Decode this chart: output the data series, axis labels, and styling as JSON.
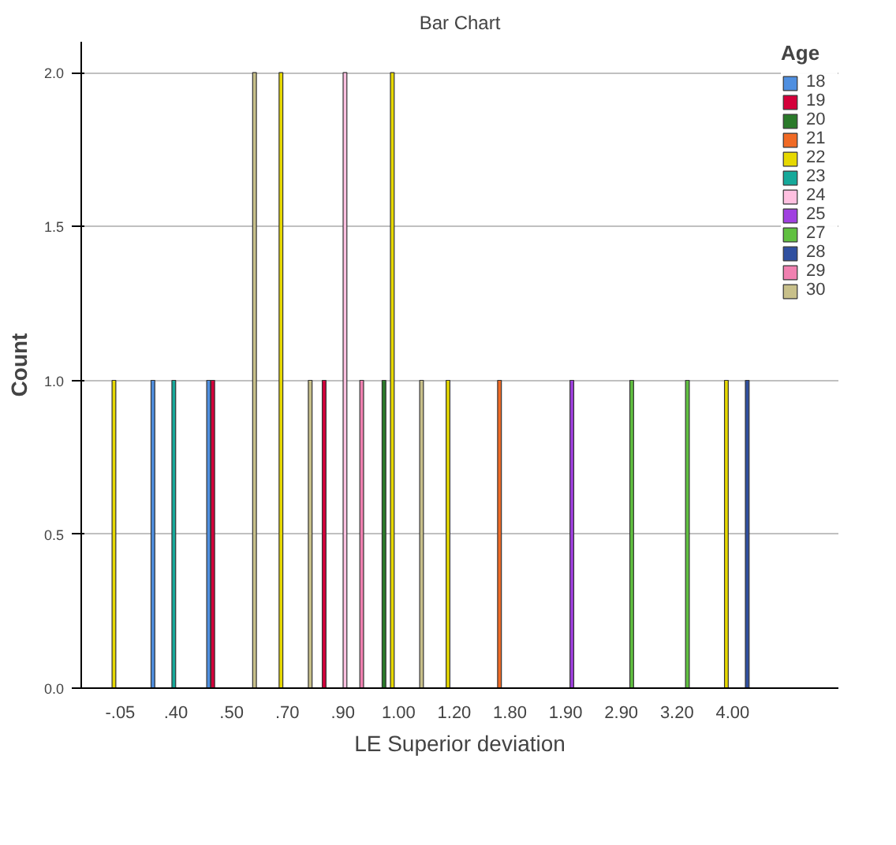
{
  "chart_data": {
    "type": "bar",
    "title": "Bar Chart",
    "xlabel": "LE Superior deviation",
    "ylabel": "Count",
    "legend_title": "Age",
    "categories": [
      "-.05",
      ".40",
      ".50",
      ".70",
      ".90",
      "1.00",
      "1.20",
      "1.80",
      "1.90",
      "2.90",
      "3.20",
      "4.00"
    ],
    "series": [
      {
        "name": "18",
        "color": "#4f8fe0",
        "values": [
          null,
          1,
          1,
          null,
          null,
          null,
          null,
          null,
          null,
          null,
          null,
          null
        ]
      },
      {
        "name": "19",
        "color": "#d4003a",
        "values": [
          null,
          null,
          1,
          null,
          1,
          null,
          null,
          null,
          null,
          null,
          null,
          null
        ]
      },
      {
        "name": "20",
        "color": "#2a7a2a",
        "values": [
          null,
          null,
          null,
          null,
          null,
          1,
          null,
          null,
          null,
          null,
          null,
          null
        ]
      },
      {
        "name": "21",
        "color": "#f06a25",
        "values": [
          null,
          null,
          null,
          null,
          null,
          null,
          null,
          1,
          null,
          null,
          null,
          null
        ]
      },
      {
        "name": "22",
        "color": "#e6d800",
        "values": [
          1,
          null,
          null,
          2,
          null,
          2,
          1,
          null,
          null,
          null,
          null,
          1
        ]
      },
      {
        "name": "23",
        "color": "#16a99a",
        "values": [
          null,
          1,
          null,
          null,
          null,
          null,
          null,
          null,
          null,
          null,
          null,
          null
        ]
      },
      {
        "name": "24",
        "color": "#ffc0e0",
        "values": [
          null,
          null,
          null,
          null,
          2,
          null,
          null,
          null,
          null,
          null,
          null,
          null
        ]
      },
      {
        "name": "25",
        "color": "#a040e0",
        "values": [
          null,
          null,
          null,
          null,
          null,
          null,
          null,
          null,
          1,
          null,
          null,
          null
        ]
      },
      {
        "name": "27",
        "color": "#60c040",
        "values": [
          null,
          null,
          null,
          null,
          null,
          null,
          null,
          null,
          null,
          1,
          1,
          null
        ]
      },
      {
        "name": "28",
        "color": "#3050a0",
        "values": [
          null,
          null,
          null,
          null,
          null,
          null,
          null,
          null,
          null,
          null,
          null,
          1
        ]
      },
      {
        "name": "29",
        "color": "#f080b0",
        "values": [
          null,
          null,
          null,
          null,
          1,
          null,
          null,
          null,
          null,
          null,
          null,
          null
        ]
      },
      {
        "name": "30",
        "color": "#c8c08a",
        "values": [
          null,
          null,
          2,
          1,
          null,
          1,
          null,
          null,
          null,
          null,
          null,
          null
        ]
      }
    ],
    "ylim": [
      0,
      2.1
    ],
    "yticks": [
      {
        "value": 0,
        "label": "0.0"
      },
      {
        "value": 0.5,
        "label": "0.5"
      },
      {
        "value": 1,
        "label": "1.0"
      },
      {
        "value": 1.5,
        "label": "1.5"
      },
      {
        "value": 2,
        "label": "2.0"
      }
    ],
    "grid": "y",
    "legend": "top right"
  }
}
